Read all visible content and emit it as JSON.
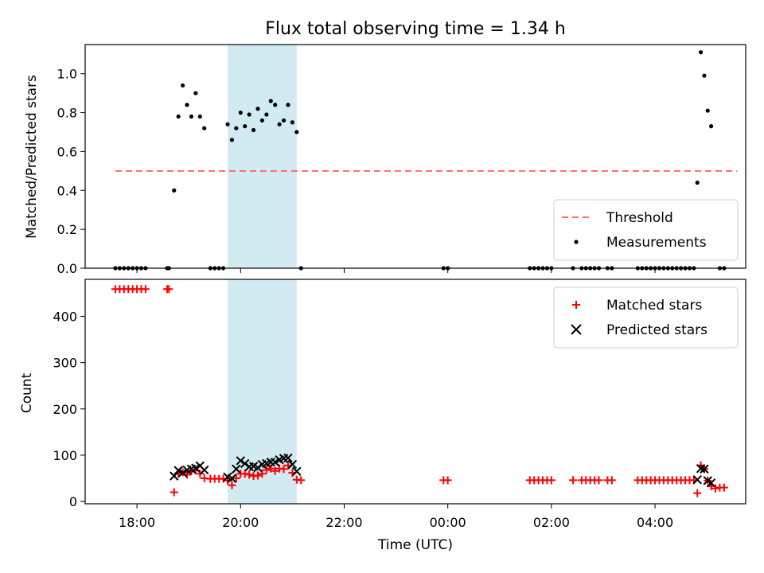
{
  "chart_data": [
    {
      "type": "scatter",
      "title": "Flux total observing time = 1.34 h",
      "xlabel": "",
      "ylabel": "Matched/Predicted stars",
      "xlim": [
        "17:00",
        "05:45"
      ],
      "ylim": [
        0,
        1.15
      ],
      "yticks": [
        "0.0",
        "0.2",
        "0.4",
        "0.6",
        "0.8",
        "1.0"
      ],
      "shaded_span": [
        "19:45",
        "21:05"
      ],
      "shade_color": "#add8e6",
      "threshold": {
        "name": "Threshold",
        "y": 0.5,
        "x_start": "17:35",
        "x_end": "05:35",
        "color": "#ff6b6b"
      },
      "series": [
        {
          "name": "Measurements",
          "color": "#000000",
          "points": [
            [
              "17:35",
              0.0
            ],
            [
              "17:40",
              0.0
            ],
            [
              "17:45",
              0.0
            ],
            [
              "17:50",
              0.0
            ],
            [
              "17:55",
              0.0
            ],
            [
              "18:00",
              0.0
            ],
            [
              "18:05",
              0.0
            ],
            [
              "18:10",
              0.0
            ],
            [
              "18:35",
              0.0
            ],
            [
              "18:37",
              0.0
            ],
            [
              "18:43",
              0.4
            ],
            [
              "18:48",
              0.78
            ],
            [
              "18:53",
              0.94
            ],
            [
              "18:58",
              0.84
            ],
            [
              "19:03",
              0.78
            ],
            [
              "19:08",
              0.9
            ],
            [
              "19:13",
              0.78
            ],
            [
              "19:18",
              0.72
            ],
            [
              "19:25",
              0.0
            ],
            [
              "19:30",
              0.0
            ],
            [
              "19:35",
              0.0
            ],
            [
              "19:40",
              0.0
            ],
            [
              "19:45",
              0.74
            ],
            [
              "19:50",
              0.66
            ],
            [
              "19:55",
              0.72
            ],
            [
              "20:00",
              0.8
            ],
            [
              "20:05",
              0.73
            ],
            [
              "20:10",
              0.79
            ],
            [
              "20:15",
              0.71
            ],
            [
              "20:20",
              0.82
            ],
            [
              "20:25",
              0.76
            ],
            [
              "20:30",
              0.79
            ],
            [
              "20:35",
              0.86
            ],
            [
              "20:40",
              0.84
            ],
            [
              "20:45",
              0.74
            ],
            [
              "20:50",
              0.76
            ],
            [
              "20:55",
              0.84
            ],
            [
              "21:00",
              0.75
            ],
            [
              "21:05",
              0.7
            ],
            [
              "21:10",
              0.0
            ],
            [
              "23:55",
              0.0
            ],
            [
              "00:00",
              0.0
            ],
            [
              "01:35",
              0.0
            ],
            [
              "01:40",
              0.0
            ],
            [
              "01:45",
              0.0
            ],
            [
              "01:50",
              0.0
            ],
            [
              "01:55",
              0.0
            ],
            [
              "02:00",
              0.0
            ],
            [
              "02:25",
              0.0
            ],
            [
              "02:35",
              0.0
            ],
            [
              "02:40",
              0.0
            ],
            [
              "02:45",
              0.0
            ],
            [
              "02:50",
              0.0
            ],
            [
              "02:55",
              0.0
            ],
            [
              "03:05",
              0.0
            ],
            [
              "03:10",
              0.0
            ],
            [
              "03:40",
              0.0
            ],
            [
              "03:45",
              0.0
            ],
            [
              "03:50",
              0.0
            ],
            [
              "03:55",
              0.0
            ],
            [
              "04:00",
              0.0
            ],
            [
              "04:05",
              0.0
            ],
            [
              "04:10",
              0.0
            ],
            [
              "04:15",
              0.0
            ],
            [
              "04:20",
              0.0
            ],
            [
              "04:25",
              0.0
            ],
            [
              "04:30",
              0.0
            ],
            [
              "04:35",
              0.0
            ],
            [
              "04:40",
              0.0
            ],
            [
              "04:45",
              0.0
            ],
            [
              "04:49",
              0.44
            ],
            [
              "04:53",
              1.11
            ],
            [
              "04:57",
              0.99
            ],
            [
              "05:01",
              0.81
            ],
            [
              "05:05",
              0.73
            ],
            [
              "05:15",
              0.0
            ],
            [
              "05:20",
              0.0
            ]
          ]
        }
      ],
      "legend_placement": "lower right"
    },
    {
      "type": "scatter",
      "title": "",
      "xlabel": "Time (UTC)",
      "ylabel": "Count",
      "xlim": [
        "17:00",
        "05:45"
      ],
      "ylim": [
        -5,
        480
      ],
      "yticks": [
        "0",
        "100",
        "200",
        "300",
        "400"
      ],
      "xticks": [
        "18:00",
        "20:00",
        "22:00",
        "00:00",
        "02:00",
        "04:00"
      ],
      "shaded_span": [
        "19:45",
        "21:05"
      ],
      "shade_color": "#add8e6",
      "series": [
        {
          "name": "Matched stars",
          "marker": "plus",
          "color": "#ff0000",
          "points": [
            [
              "17:35",
              459
            ],
            [
              "17:40",
              459
            ],
            [
              "17:45",
              459
            ],
            [
              "17:50",
              459
            ],
            [
              "17:55",
              459
            ],
            [
              "18:00",
              459
            ],
            [
              "18:05",
              459
            ],
            [
              "18:10",
              459
            ],
            [
              "18:35",
              459
            ],
            [
              "18:37",
              459
            ],
            [
              "18:43",
              20
            ],
            [
              "18:48",
              60
            ],
            [
              "18:53",
              63
            ],
            [
              "18:58",
              58
            ],
            [
              "19:03",
              65
            ],
            [
              "19:08",
              67
            ],
            [
              "19:13",
              60
            ],
            [
              "19:18",
              50
            ],
            [
              "19:25",
              49
            ],
            [
              "19:30",
              49
            ],
            [
              "19:35",
              49
            ],
            [
              "19:40",
              49
            ],
            [
              "19:45",
              45
            ],
            [
              "19:50",
              35
            ],
            [
              "19:55",
              50
            ],
            [
              "20:00",
              60
            ],
            [
              "20:05",
              60
            ],
            [
              "20:10",
              58
            ],
            [
              "20:15",
              55
            ],
            [
              "20:20",
              56
            ],
            [
              "20:25",
              60
            ],
            [
              "20:30",
              68
            ],
            [
              "20:35",
              71
            ],
            [
              "20:40",
              66
            ],
            [
              "20:45",
              71
            ],
            [
              "20:50",
              70
            ],
            [
              "20:55",
              78
            ],
            [
              "21:00",
              62
            ],
            [
              "21:05",
              47
            ],
            [
              "21:10",
              46
            ],
            [
              "23:55",
              46
            ],
            [
              "00:00",
              46
            ],
            [
              "01:35",
              46
            ],
            [
              "01:40",
              46
            ],
            [
              "01:45",
              46
            ],
            [
              "01:50",
              46
            ],
            [
              "01:55",
              46
            ],
            [
              "02:00",
              46
            ],
            [
              "02:25",
              46
            ],
            [
              "02:35",
              46
            ],
            [
              "02:40",
              46
            ],
            [
              "02:45",
              46
            ],
            [
              "02:50",
              46
            ],
            [
              "02:55",
              46
            ],
            [
              "03:05",
              46
            ],
            [
              "03:10",
              46
            ],
            [
              "03:40",
              46
            ],
            [
              "03:45",
              46
            ],
            [
              "03:50",
              46
            ],
            [
              "03:55",
              46
            ],
            [
              "04:00",
              46
            ],
            [
              "04:05",
              46
            ],
            [
              "04:10",
              46
            ],
            [
              "04:15",
              46
            ],
            [
              "04:20",
              46
            ],
            [
              "04:25",
              46
            ],
            [
              "04:30",
              46
            ],
            [
              "04:35",
              46
            ],
            [
              "04:40",
              46
            ],
            [
              "04:45",
              46
            ],
            [
              "04:49",
              18
            ],
            [
              "04:53",
              78
            ],
            [
              "04:57",
              70
            ],
            [
              "05:01",
              45
            ],
            [
              "05:05",
              33
            ],
            [
              "05:10",
              28
            ],
            [
              "05:15",
              30
            ],
            [
              "05:20",
              30
            ]
          ]
        },
        {
          "name": "Predicted stars",
          "marker": "x",
          "color": "#000000",
          "points": [
            [
              "18:43",
              55
            ],
            [
              "18:48",
              67
            ],
            [
              "18:53",
              62
            ],
            [
              "18:58",
              68
            ],
            [
              "19:03",
              70
            ],
            [
              "19:08",
              72
            ],
            [
              "19:13",
              77
            ],
            [
              "19:18",
              68
            ],
            [
              "19:45",
              53
            ],
            [
              "19:50",
              50
            ],
            [
              "19:55",
              70
            ],
            [
              "20:00",
              88
            ],
            [
              "20:05",
              82
            ],
            [
              "20:10",
              75
            ],
            [
              "20:15",
              76
            ],
            [
              "20:20",
              73
            ],
            [
              "20:25",
              80
            ],
            [
              "20:30",
              82
            ],
            [
              "20:35",
              85
            ],
            [
              "20:40",
              85
            ],
            [
              "20:45",
              90
            ],
            [
              "20:50",
              93
            ],
            [
              "20:55",
              94
            ],
            [
              "21:00",
              80
            ],
            [
              "21:05",
              65
            ],
            [
              "04:49",
              47
            ],
            [
              "04:53",
              71
            ],
            [
              "04:57",
              70
            ],
            [
              "05:01",
              45
            ],
            [
              "05:05",
              40
            ]
          ]
        }
      ],
      "legend_placement": "upper right"
    }
  ]
}
